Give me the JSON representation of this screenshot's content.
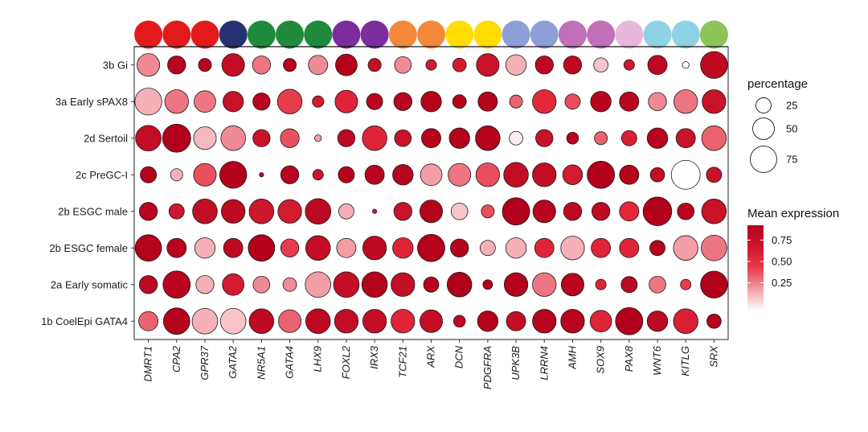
{
  "chart_data": {
    "type": "dotplot",
    "genes": [
      "DMRT1",
      "CPA2",
      "GPR37",
      "GATA2",
      "NR5A1",
      "GATA4",
      "LHX9",
      "FOXL2",
      "IRX3",
      "TCF21",
      "ARX",
      "DCN",
      "PDGFRA",
      "UPK3B",
      "LRRN4",
      "AMH",
      "SOX9",
      "PAX8",
      "WNT6",
      "KITLG",
      "SRX"
    ],
    "gene_colors": [
      "#e31a1c",
      "#e31a1c",
      "#e31a1c",
      "#253170",
      "#1f8a3c",
      "#1f8a3c",
      "#1f8a3c",
      "#7b2d9e",
      "#7b2d9e",
      "#f4883a",
      "#f4883a",
      "#ffdd00",
      "#ffdd00",
      "#8d9fd8",
      "#8d9fd8",
      "#c070b8",
      "#c070b8",
      "#e8b8dc",
      "#8ed3e3",
      "#8ed3e3",
      "#8cc45a"
    ],
    "cell_types": [
      "3b Gi",
      "3a Early sPAX8",
      "2d Sertoil",
      "2c PreGC-I",
      "2b ESGC male",
      "2b ESGC female",
      "2a Early somatic",
      "1b CoelEpi GATA4"
    ],
    "percentage": [
      [
        55,
        35,
        18,
        55,
        35,
        18,
        40,
        50,
        18,
        30,
        12,
        20,
        55,
        45,
        35,
        35,
        22,
        12,
        40,
        5,
        78
      ],
      [
        78,
        60,
        50,
        45,
        32,
        65,
        14,
        55,
        28,
        35,
        45,
        20,
        40,
        18,
        60,
        25,
        45,
        40,
        35,
        60,
        60
      ],
      [
        70,
        85,
        55,
        65,
        32,
        38,
        5,
        32,
        65,
        30,
        40,
        45,
        65,
        20,
        32,
        15,
        18,
        25,
        45,
        40,
        65
      ],
      [
        28,
        16,
        55,
        78,
        2,
        35,
        12,
        28,
        40,
        45,
        50,
        55,
        60,
        65,
        60,
        42,
        80,
        40,
        22,
        90,
        25
      ],
      [
        35,
        25,
        65,
        60,
        65,
        60,
        70,
        25,
        2,
        35,
        55,
        30,
        18,
        80,
        55,
        35,
        35,
        40,
        88,
        30,
        65
      ],
      [
        75,
        40,
        45,
        40,
        75,
        35,
        65,
        40,
        60,
        45,
        80,
        35,
        25,
        45,
        40,
        60,
        40,
        40,
        25,
        65,
        70
      ],
      [
        35,
        80,
        35,
        50,
        30,
        20,
        70,
        70,
        70,
        60,
        25,
        65,
        10,
        60,
        60,
        55,
        12,
        28,
        30,
        12,
        78
      ],
      [
        40,
        75,
        70,
        70,
        65,
        55,
        65,
        60,
        60,
        60,
        55,
        15,
        45,
        40,
        60,
        60,
        50,
        80,
        45,
        65,
        22
      ]
    ],
    "expression": [
      [
        0.3,
        0.95,
        0.95,
        0.85,
        0.35,
        0.95,
        0.3,
        0.98,
        0.85,
        0.3,
        0.7,
        0.7,
        0.8,
        0.2,
        0.9,
        0.9,
        0.15,
        0.75,
        0.9,
        0.0,
        0.9
      ],
      [
        0.2,
        0.35,
        0.35,
        0.8,
        0.95,
        0.5,
        0.7,
        0.6,
        0.95,
        0.95,
        0.98,
        0.98,
        0.98,
        0.4,
        0.55,
        0.45,
        0.95,
        0.95,
        0.3,
        0.35,
        0.8
      ],
      [
        0.85,
        1.0,
        0.18,
        0.3,
        0.8,
        0.45,
        0.25,
        0.9,
        0.6,
        0.8,
        0.98,
        0.98,
        0.98,
        0.05,
        0.8,
        0.95,
        0.4,
        0.65,
        0.95,
        0.8,
        0.4
      ],
      [
        0.98,
        0.2,
        0.45,
        1.0,
        0.9,
        0.95,
        0.75,
        0.98,
        0.95,
        0.95,
        0.25,
        0.35,
        0.45,
        0.85,
        0.85,
        0.7,
        1.0,
        0.98,
        0.85,
        0.0,
        0.8
      ],
      [
        0.95,
        0.75,
        0.85,
        0.9,
        0.75,
        0.7,
        0.9,
        0.2,
        0.75,
        0.8,
        0.98,
        0.15,
        0.45,
        1.0,
        0.95,
        0.9,
        0.9,
        0.55,
        1.0,
        0.95,
        0.8
      ],
      [
        0.98,
        0.95,
        0.2,
        0.9,
        1.0,
        0.5,
        0.85,
        0.25,
        0.9,
        0.6,
        0.98,
        0.98,
        0.2,
        0.2,
        0.6,
        0.2,
        0.6,
        0.6,
        0.95,
        0.25,
        0.35
      ],
      [
        0.9,
        0.95,
        0.2,
        0.7,
        0.3,
        0.3,
        0.25,
        0.85,
        0.98,
        0.85,
        0.95,
        1.0,
        0.98,
        0.98,
        0.35,
        0.95,
        0.6,
        0.9,
        0.35,
        0.5,
        1.0
      ],
      [
        0.4,
        0.98,
        0.2,
        0.15,
        0.9,
        0.4,
        0.9,
        0.85,
        0.85,
        0.6,
        0.85,
        0.9,
        0.98,
        0.85,
        0.95,
        0.95,
        0.6,
        1.0,
        0.9,
        0.65,
        0.98
      ]
    ],
    "size_legend": {
      "title": "percentage",
      "values": [
        "25",
        "50",
        "75"
      ]
    },
    "color_legend": {
      "title": "Mean expression",
      "ticks": [
        "0.75",
        "0.50",
        "0.25"
      ],
      "low_color": "#ffffff",
      "high_color": "#b2001a",
      "range": [
        0,
        1
      ]
    },
    "grid": false
  }
}
